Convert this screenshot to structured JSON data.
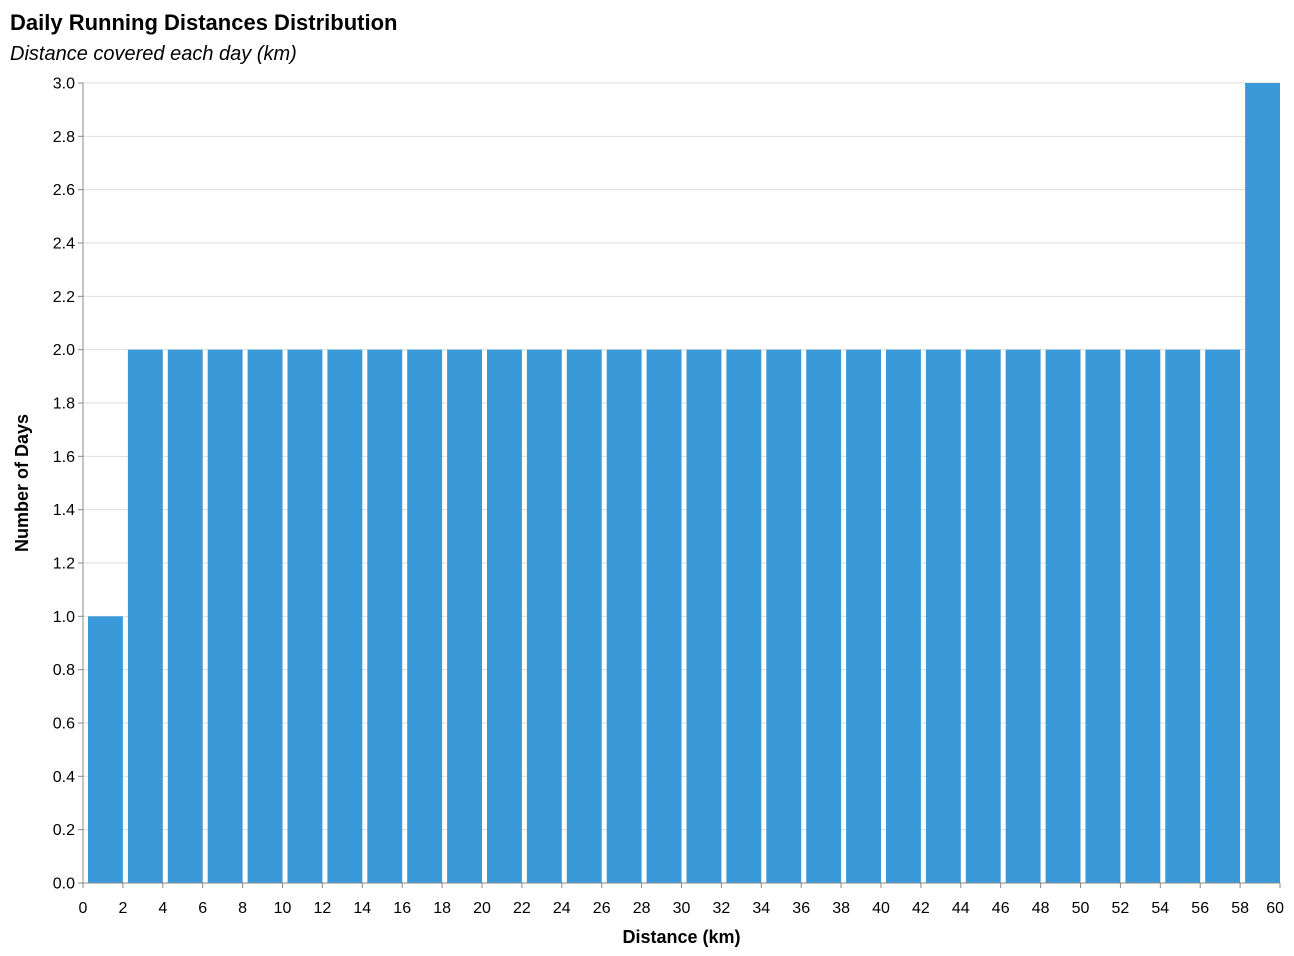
{
  "chart_data": {
    "type": "bar",
    "title": "Daily Running Distances Distribution",
    "subtitle": "Distance covered each day (km)",
    "xlabel": "Distance (km)",
    "ylabel": "Number of Days",
    "xlim": [
      0,
      60
    ],
    "ylim": [
      0,
      3
    ],
    "bin_width": 2,
    "x_ticks": [
      0,
      2,
      4,
      6,
      8,
      10,
      12,
      14,
      16,
      18,
      20,
      22,
      24,
      26,
      28,
      30,
      32,
      34,
      36,
      38,
      40,
      42,
      44,
      46,
      48,
      50,
      52,
      54,
      56,
      58,
      60
    ],
    "y_ticks": [
      "0.0",
      "0.2",
      "0.4",
      "0.6",
      "0.8",
      "1.0",
      "1.2",
      "1.4",
      "1.6",
      "1.8",
      "2.0",
      "2.2",
      "2.4",
      "2.6",
      "2.8",
      "3.0"
    ],
    "bins": [
      {
        "start": 0,
        "end": 2,
        "count": 1
      },
      {
        "start": 2,
        "end": 4,
        "count": 2
      },
      {
        "start": 4,
        "end": 6,
        "count": 2
      },
      {
        "start": 6,
        "end": 8,
        "count": 2
      },
      {
        "start": 8,
        "end": 10,
        "count": 2
      },
      {
        "start": 10,
        "end": 12,
        "count": 2
      },
      {
        "start": 12,
        "end": 14,
        "count": 2
      },
      {
        "start": 14,
        "end": 16,
        "count": 2
      },
      {
        "start": 16,
        "end": 18,
        "count": 2
      },
      {
        "start": 18,
        "end": 20,
        "count": 2
      },
      {
        "start": 20,
        "end": 22,
        "count": 2
      },
      {
        "start": 22,
        "end": 24,
        "count": 2
      },
      {
        "start": 24,
        "end": 26,
        "count": 2
      },
      {
        "start": 26,
        "end": 28,
        "count": 2
      },
      {
        "start": 28,
        "end": 30,
        "count": 2
      },
      {
        "start": 30,
        "end": 32,
        "count": 2
      },
      {
        "start": 32,
        "end": 34,
        "count": 2
      },
      {
        "start": 34,
        "end": 36,
        "count": 2
      },
      {
        "start": 36,
        "end": 38,
        "count": 2
      },
      {
        "start": 38,
        "end": 40,
        "count": 2
      },
      {
        "start": 40,
        "end": 42,
        "count": 2
      },
      {
        "start": 42,
        "end": 44,
        "count": 2
      },
      {
        "start": 44,
        "end": 46,
        "count": 2
      },
      {
        "start": 46,
        "end": 48,
        "count": 2
      },
      {
        "start": 48,
        "end": 50,
        "count": 2
      },
      {
        "start": 50,
        "end": 52,
        "count": 2
      },
      {
        "start": 52,
        "end": 54,
        "count": 2
      },
      {
        "start": 54,
        "end": 56,
        "count": 2
      },
      {
        "start": 56,
        "end": 58,
        "count": 2
      },
      {
        "start": 58,
        "end": 60,
        "count": 3
      }
    ],
    "grid": true,
    "bar_color": "#3a99d9"
  }
}
